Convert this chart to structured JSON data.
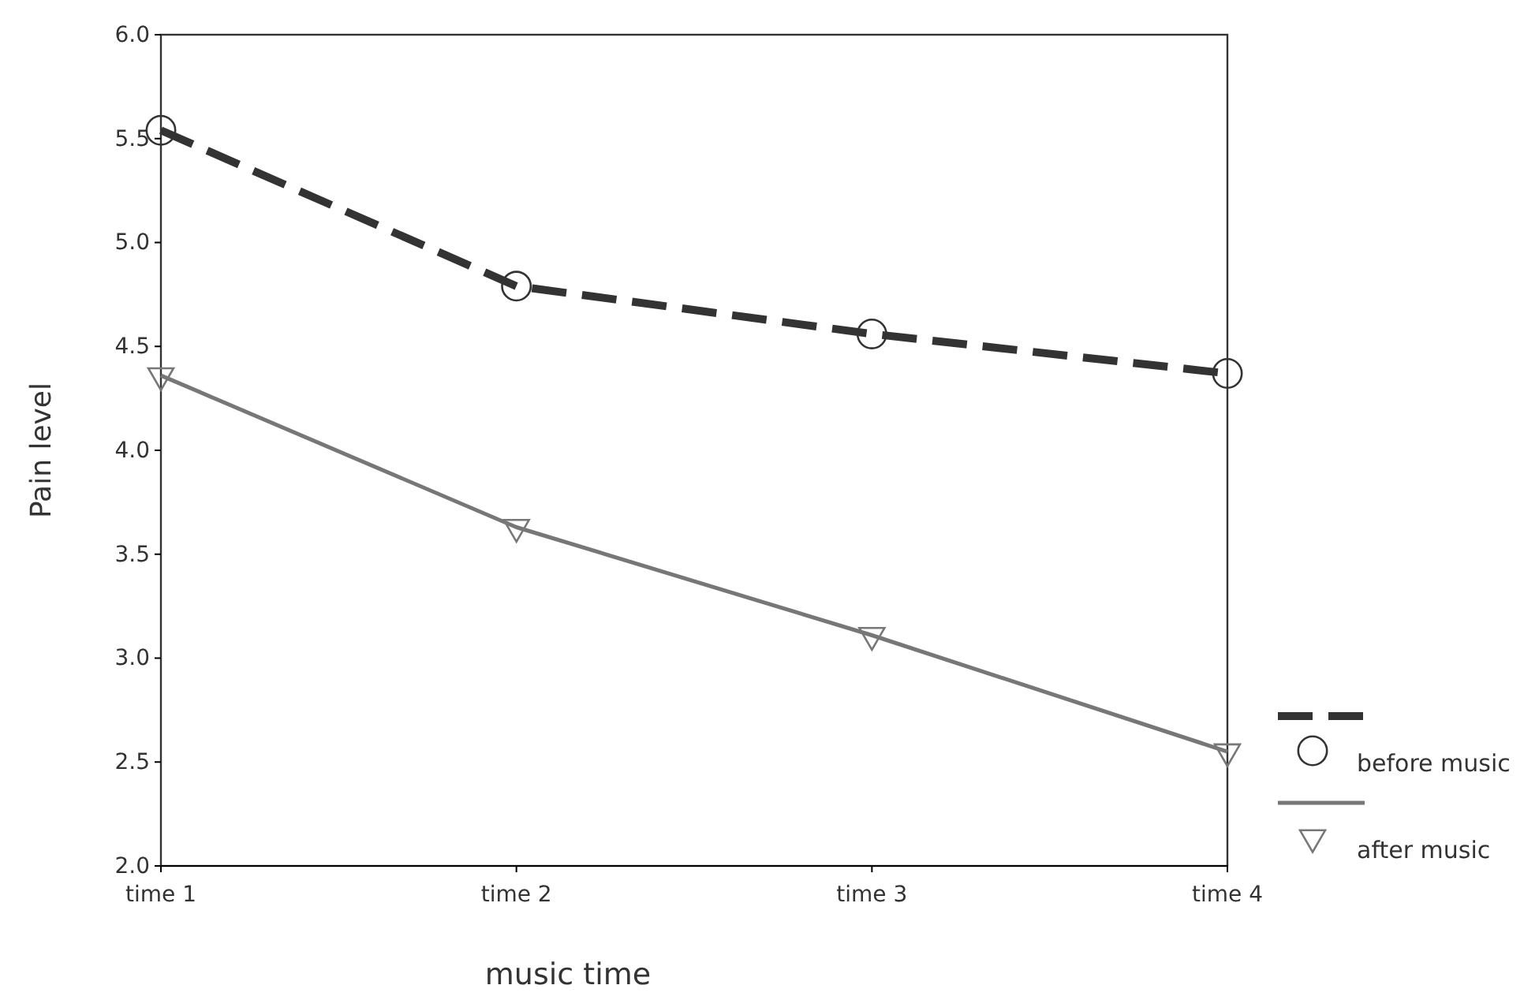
{
  "chart_data": {
    "type": "line",
    "xlabel": "music time",
    "ylabel": "Pain level",
    "categories": [
      "time 1",
      "time 2",
      "time 3",
      "time 4"
    ],
    "series": [
      {
        "name": "before music",
        "color": "#333333",
        "values": [
          5.54,
          4.79,
          4.56,
          4.37
        ],
        "line_style": "dashed",
        "marker": "circle"
      },
      {
        "name": "after music",
        "color": "#777777",
        "values": [
          4.36,
          3.63,
          3.11,
          2.55
        ],
        "line_style": "solid",
        "marker": "triangle"
      }
    ],
    "ylim": [
      2.0,
      6.0
    ],
    "yticks": [
      {
        "value": 2,
        "label": "2.0"
      },
      {
        "value": 2.5,
        "label": "2.5"
      },
      {
        "value": 3,
        "label": "3.0"
      },
      {
        "value": 3.5,
        "label": "3.5"
      },
      {
        "value": 4,
        "label": "4.0"
      },
      {
        "value": 4.5,
        "label": "4.5"
      },
      {
        "value": 5,
        "label": "5.0"
      },
      {
        "value": 5.5,
        "label": "5.5"
      },
      {
        "value": 6,
        "label": "6.0"
      }
    ],
    "grid": false,
    "legend": "right"
  }
}
